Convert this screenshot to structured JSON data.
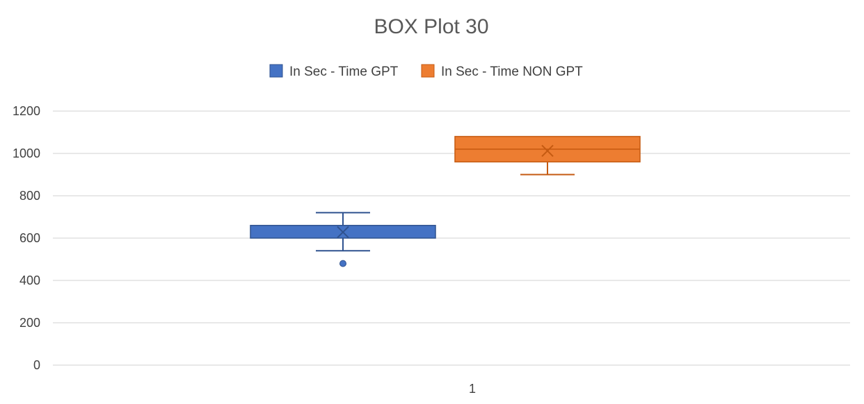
{
  "chart_data": {
    "type": "box",
    "title": "BOX Plot 30",
    "xlabel": "",
    "ylabel": "",
    "categories": [
      "1"
    ],
    "ylim": [
      0,
      1200
    ],
    "yticks": [
      0,
      200,
      400,
      600,
      800,
      1000,
      1200
    ],
    "grid": true,
    "legend_position": "top",
    "series": [
      {
        "name": "In Sec - Time GPT",
        "color": "#4472c4",
        "min": 540,
        "q1": 600,
        "median": 660,
        "q3": 660,
        "max": 720,
        "mean": 628,
        "outliers": [
          480
        ]
      },
      {
        "name": "In Sec - Time NON GPT",
        "color": "#ed7d31",
        "min": 900,
        "q1": 960,
        "median": 1020,
        "q3": 1080,
        "max": 1080,
        "mean": 1012,
        "outliers": []
      }
    ]
  }
}
